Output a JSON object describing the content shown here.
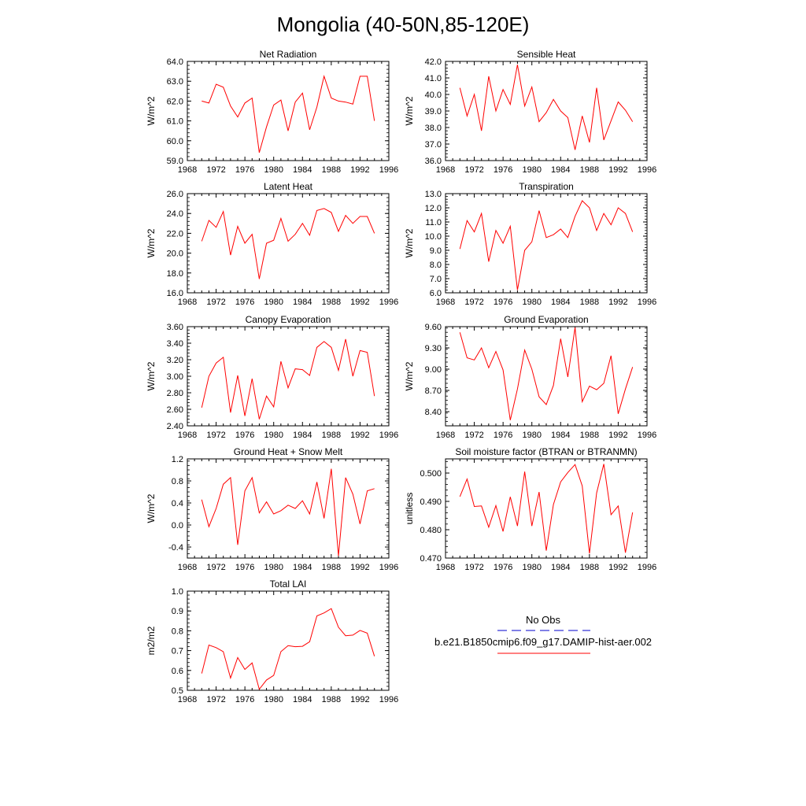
{
  "title": "Mongolia (40-50N,85-120E)",
  "legend": {
    "items": [
      {
        "label": "No Obs",
        "color": "#0000cc",
        "dashed": true
      },
      {
        "label": "b.e21.B1850cmip6.f09_g17.DAMIP-hist-aer.002",
        "color": "#ff0000",
        "dashed": false
      }
    ]
  },
  "chart_data": [
    {
      "type": "line",
      "title": "Net Radiation",
      "ylabel": "W/m^2",
      "xlim": [
        1968,
        1996
      ],
      "ylim": [
        59.0,
        64.0
      ],
      "xticks": [
        1968,
        1972,
        1976,
        1980,
        1984,
        1988,
        1992,
        1996
      ],
      "yticks": [
        "59.0",
        "60.0",
        "61.0",
        "62.0",
        "63.0",
        "64.0"
      ],
      "series": [
        {
          "color": "#ff0000",
          "x": [
            1970,
            1971,
            1972,
            1973,
            1974,
            1975,
            1976,
            1977,
            1978,
            1979,
            1980,
            1981,
            1982,
            1983,
            1984,
            1985,
            1986,
            1987,
            1988,
            1989,
            1990,
            1991,
            1992,
            1993,
            1994
          ],
          "y": [
            62.0,
            61.9,
            62.85,
            62.7,
            61.75,
            61.2,
            61.9,
            62.15,
            59.4,
            60.7,
            61.8,
            62.05,
            60.5,
            61.95,
            62.4,
            60.55,
            61.7,
            63.25,
            62.15,
            62.0,
            61.95,
            61.85,
            63.25,
            63.25,
            61.0
          ]
        }
      ]
    },
    {
      "type": "line",
      "title": "Sensible Heat",
      "ylabel": "W/m^2",
      "xlim": [
        1968,
        1996
      ],
      "ylim": [
        36.0,
        42.0
      ],
      "xticks": [
        1968,
        1972,
        1976,
        1980,
        1984,
        1988,
        1992,
        1996
      ],
      "yticks": [
        "36.0",
        "37.0",
        "38.0",
        "39.0",
        "40.0",
        "41.0",
        "42.0"
      ],
      "series": [
        {
          "color": "#ff0000",
          "x": [
            1970,
            1971,
            1972,
            1973,
            1974,
            1975,
            1976,
            1977,
            1978,
            1979,
            1980,
            1981,
            1982,
            1983,
            1984,
            1985,
            1986,
            1987,
            1988,
            1989,
            1990,
            1991,
            1992,
            1993,
            1994
          ],
          "y": [
            40.4,
            38.7,
            40.0,
            37.8,
            41.1,
            39.0,
            40.3,
            39.4,
            41.8,
            39.3,
            40.45,
            38.35,
            38.9,
            39.7,
            39.0,
            38.6,
            36.65,
            38.7,
            37.1,
            40.4,
            37.25,
            38.4,
            39.55,
            39.05,
            38.35
          ]
        }
      ]
    },
    {
      "type": "line",
      "title": "Latent Heat",
      "ylabel": "W/m^2",
      "xlim": [
        1968,
        1996
      ],
      "ylim": [
        16.0,
        26.0
      ],
      "xticks": [
        1968,
        1972,
        1976,
        1980,
        1984,
        1988,
        1992,
        1996
      ],
      "yticks": [
        "16.0",
        "18.0",
        "20.0",
        "22.0",
        "24.0",
        "26.0"
      ],
      "series": [
        {
          "color": "#ff0000",
          "x": [
            1970,
            1971,
            1972,
            1973,
            1974,
            1975,
            1976,
            1977,
            1978,
            1979,
            1980,
            1981,
            1982,
            1983,
            1984,
            1985,
            1986,
            1987,
            1988,
            1989,
            1990,
            1991,
            1992,
            1993,
            1994
          ],
          "y": [
            21.2,
            23.3,
            22.6,
            24.2,
            19.8,
            22.7,
            21.0,
            21.9,
            17.4,
            21.0,
            21.3,
            23.5,
            21.2,
            21.9,
            23.0,
            21.8,
            24.3,
            24.5,
            24.1,
            22.2,
            23.8,
            23.0,
            23.7,
            23.7,
            22.0
          ]
        }
      ]
    },
    {
      "type": "line",
      "title": "Transpiration",
      "ylabel": "W/m^2",
      "xlim": [
        1968,
        1996
      ],
      "ylim": [
        6.0,
        13.0
      ],
      "xticks": [
        1968,
        1972,
        1976,
        1980,
        1984,
        1988,
        1992,
        1996
      ],
      "yticks": [
        "6.0",
        "7.0",
        "8.0",
        "9.0",
        "10.0",
        "11.0",
        "12.0",
        "13.0"
      ],
      "series": [
        {
          "color": "#ff0000",
          "x": [
            1970,
            1971,
            1972,
            1973,
            1974,
            1975,
            1976,
            1977,
            1978,
            1979,
            1980,
            1981,
            1982,
            1983,
            1984,
            1985,
            1986,
            1987,
            1988,
            1989,
            1990,
            1991,
            1992,
            1993,
            1994
          ],
          "y": [
            9.1,
            11.1,
            10.3,
            11.6,
            8.2,
            10.4,
            9.5,
            10.7,
            6.2,
            9.0,
            9.6,
            11.8,
            9.9,
            10.1,
            10.5,
            9.9,
            11.4,
            12.5,
            12.0,
            10.4,
            11.6,
            10.8,
            12.0,
            11.6,
            10.3
          ]
        }
      ]
    },
    {
      "type": "line",
      "title": "Canopy Evaporation",
      "ylabel": "W/m^2",
      "xlim": [
        1968,
        1996
      ],
      "ylim": [
        2.4,
        3.6
      ],
      "xticks": [
        1968,
        1972,
        1976,
        1980,
        1984,
        1988,
        1992,
        1996
      ],
      "yticks": [
        "2.40",
        "2.60",
        "2.80",
        "3.00",
        "3.20",
        "3.40",
        "3.60"
      ],
      "series": [
        {
          "color": "#ff0000",
          "x": [
            1970,
            1971,
            1972,
            1973,
            1974,
            1975,
            1976,
            1977,
            1978,
            1979,
            1980,
            1981,
            1982,
            1983,
            1984,
            1985,
            1986,
            1987,
            1988,
            1989,
            1990,
            1991,
            1992,
            1993,
            1994
          ],
          "y": [
            2.62,
            3.0,
            3.16,
            3.23,
            2.56,
            3.01,
            2.52,
            2.97,
            2.48,
            2.76,
            2.63,
            3.18,
            2.86,
            3.09,
            3.08,
            3.01,
            3.35,
            3.42,
            3.35,
            3.07,
            3.45,
            3.0,
            3.31,
            3.29,
            2.76
          ]
        }
      ]
    },
    {
      "type": "line",
      "title": "Ground Evaporation",
      "ylabel": "W/m^2",
      "xlim": [
        1968,
        1996
      ],
      "ylim": [
        8.2,
        9.6
      ],
      "xticks": [
        1968,
        1972,
        1976,
        1980,
        1984,
        1988,
        1992,
        1996
      ],
      "yticks": [
        "8.40",
        "8.70",
        "9.00",
        "9.30",
        "9.60"
      ],
      "series": [
        {
          "color": "#ff0000",
          "x": [
            1970,
            1971,
            1972,
            1973,
            1974,
            1975,
            1976,
            1977,
            1978,
            1979,
            1980,
            1981,
            1982,
            1983,
            1984,
            1985,
            1986,
            1987,
            1988,
            1989,
            1990,
            1991,
            1992,
            1993,
            1994
          ],
          "y": [
            9.52,
            9.16,
            9.13,
            9.3,
            9.02,
            9.25,
            8.99,
            8.28,
            8.72,
            9.27,
            9.0,
            8.61,
            8.5,
            8.77,
            9.43,
            8.89,
            9.59,
            8.54,
            8.76,
            8.71,
            8.8,
            9.19,
            8.37,
            8.72,
            9.03
          ]
        }
      ]
    },
    {
      "type": "line",
      "title": "Ground Heat + Snow Melt",
      "ylabel": "W/m^2",
      "xlim": [
        1968,
        1996
      ],
      "ylim": [
        -0.6,
        1.2
      ],
      "xticks": [
        1968,
        1972,
        1976,
        1980,
        1984,
        1988,
        1992,
        1996
      ],
      "yticks": [
        "-0.4",
        "0.0",
        "0.4",
        "0.8",
        "1.2"
      ],
      "series": [
        {
          "color": "#ff0000",
          "x": [
            1970,
            1971,
            1972,
            1973,
            1974,
            1975,
            1976,
            1977,
            1978,
            1979,
            1980,
            1981,
            1982,
            1983,
            1984,
            1985,
            1986,
            1987,
            1988,
            1989,
            1990,
            1991,
            1992,
            1993,
            1994
          ],
          "y": [
            0.46,
            -0.03,
            0.3,
            0.74,
            0.86,
            -0.36,
            0.62,
            0.86,
            0.22,
            0.42,
            0.2,
            0.26,
            0.36,
            0.3,
            0.44,
            0.2,
            0.78,
            0.12,
            1.02,
            -0.56,
            0.86,
            0.56,
            0.02,
            0.62,
            0.66
          ]
        }
      ]
    },
    {
      "type": "line",
      "title": "Soil moisture factor (BTRAN or BTRANMN)",
      "ylabel": "unitless",
      "xlim": [
        1968,
        1996
      ],
      "ylim": [
        0.47,
        0.505
      ],
      "xticks": [
        1968,
        1972,
        1976,
        1980,
        1984,
        1988,
        1992,
        1996
      ],
      "yticks": [
        "0.470",
        "0.480",
        "0.490",
        "0.500"
      ],
      "series": [
        {
          "color": "#ff0000",
          "x": [
            1970,
            1971,
            1972,
            1973,
            1974,
            1975,
            1976,
            1977,
            1978,
            1979,
            1980,
            1981,
            1982,
            1983,
            1984,
            1985,
            1986,
            1987,
            1988,
            1989,
            1990,
            1991,
            1992,
            1993,
            1994
          ],
          "y": [
            0.4917,
            0.4979,
            0.4882,
            0.4884,
            0.4809,
            0.4885,
            0.4794,
            0.4916,
            0.4813,
            0.5005,
            0.4813,
            0.4933,
            0.4726,
            0.4889,
            0.4969,
            0.5002,
            0.503,
            0.4955,
            0.4716,
            0.493,
            0.5032,
            0.4853,
            0.4884,
            0.4719,
            0.4861
          ]
        }
      ]
    },
    {
      "type": "line",
      "title": "Total LAI",
      "ylabel": "m2/m2",
      "xlim": [
        1968,
        1996
      ],
      "ylim": [
        0.5,
        1.0
      ],
      "xticks": [
        1968,
        1972,
        1976,
        1980,
        1984,
        1988,
        1992,
        1996
      ],
      "yticks": [
        "0.5",
        "0.6",
        "0.7",
        "0.8",
        "0.9",
        "1.0"
      ],
      "series": [
        {
          "color": "#ff0000",
          "x": [
            1970,
            1971,
            1972,
            1973,
            1974,
            1975,
            1976,
            1977,
            1978,
            1979,
            1980,
            1981,
            1982,
            1983,
            1984,
            1985,
            1986,
            1987,
            1988,
            1989,
            1990,
            1991,
            1992,
            1993,
            1994
          ],
          "y": [
            0.585,
            0.728,
            0.715,
            0.695,
            0.562,
            0.665,
            0.605,
            0.638,
            0.505,
            0.552,
            0.575,
            0.695,
            0.725,
            0.72,
            0.722,
            0.745,
            0.875,
            0.89,
            0.912,
            0.818,
            0.775,
            0.778,
            0.802,
            0.788,
            0.672
          ]
        }
      ]
    }
  ]
}
